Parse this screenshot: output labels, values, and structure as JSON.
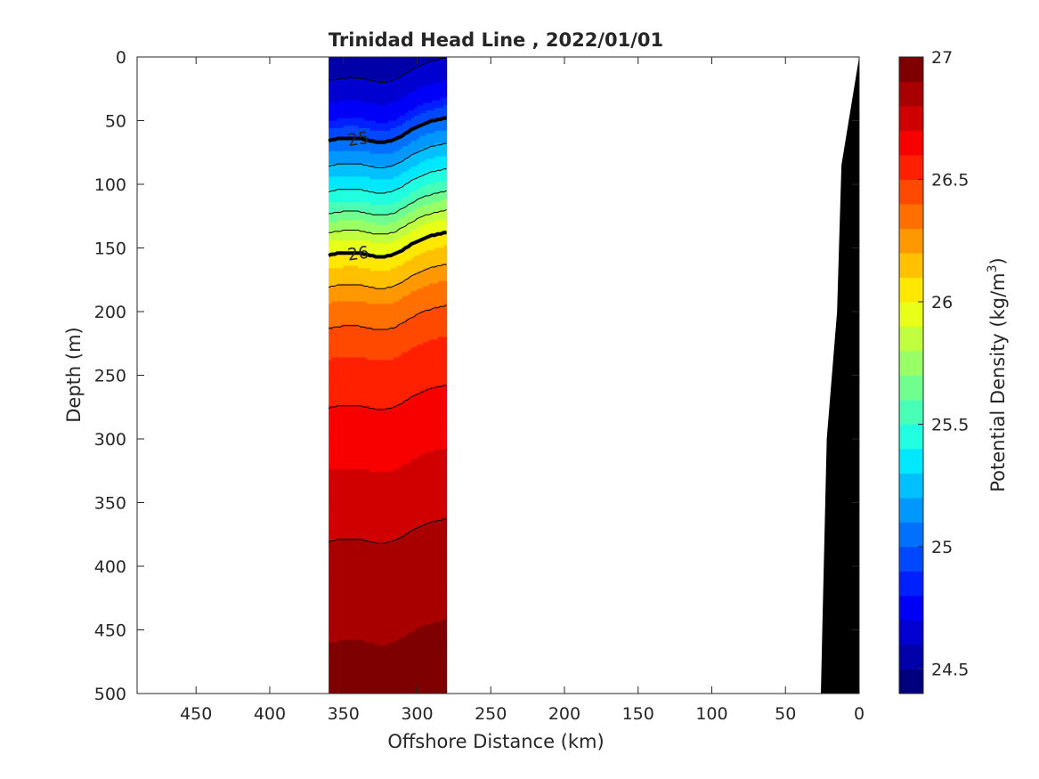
{
  "chart_data": {
    "type": "heatmap",
    "title": "Trinidad Head Line , 2022/01/01",
    "xlabel": "Offshore Distance (km)",
    "ylabel": "Depth (m)",
    "colorbar_label": "Potential Density (kg/m",
    "colorbar_label_sup": "3",
    "colorbar_label_close": ")",
    "xlim": [
      490,
      0
    ],
    "ylim": [
      0,
      500
    ],
    "x_ticks": [
      450,
      400,
      350,
      300,
      250,
      200,
      150,
      100,
      50,
      0
    ],
    "y_ticks": [
      0,
      50,
      100,
      150,
      200,
      250,
      300,
      350,
      400,
      450,
      500
    ],
    "colorbar_range": [
      24.4,
      27.0
    ],
    "colorbar_ticks": [
      24.5,
      25,
      25.5,
      26,
      26.5,
      27
    ],
    "colorbar_levels": [
      24.4,
      24.5,
      24.6,
      24.7,
      24.8,
      24.9,
      25.0,
      25.1,
      25.2,
      25.3,
      25.4,
      25.5,
      25.6,
      25.7,
      25.8,
      25.9,
      26.0,
      26.1,
      26.2,
      26.3,
      26.4,
      26.5,
      26.6,
      26.7,
      26.8,
      26.9,
      27.0
    ],
    "colorbar_colors": [
      "#00007f",
      "#0000a8",
      "#0000d0",
      "#0000f8",
      "#0020ff",
      "#0048ff",
      "#0070ff",
      "#0098ff",
      "#00c0ff",
      "#00e8ff",
      "#20ffdf",
      "#48ffb7",
      "#70ff8f",
      "#98ff67",
      "#c0ff3f",
      "#e8ff17",
      "#ffe800",
      "#ffc000",
      "#ff9800",
      "#ff7000",
      "#ff4800",
      "#ff2000",
      "#f80000",
      "#d00000",
      "#a80000",
      "#7f0000"
    ],
    "data_section_x_range_km": [
      360,
      280
    ],
    "sample_profile_x_km": 320,
    "sample_profile": {
      "depth": [
        0,
        25,
        50,
        60,
        70,
        85,
        100,
        115,
        130,
        145,
        160,
        180,
        200,
        250,
        300,
        350,
        380,
        420,
        460,
        500
      ],
      "density": [
        24.55,
        24.62,
        24.8,
        24.95,
        25.05,
        25.2,
        25.35,
        25.5,
        25.7,
        25.9,
        26.05,
        26.2,
        26.35,
        26.55,
        26.65,
        26.75,
        26.8,
        26.85,
        26.9,
        26.95
      ]
    },
    "contour_labels": [
      "25",
      "26"
    ],
    "contour_label_values": [
      25,
      26
    ],
    "bathymetry": {
      "x": [
        0,
        12,
        15,
        22,
        25,
        26
      ],
      "depth": [
        0,
        85,
        200,
        300,
        450,
        500
      ]
    }
  }
}
